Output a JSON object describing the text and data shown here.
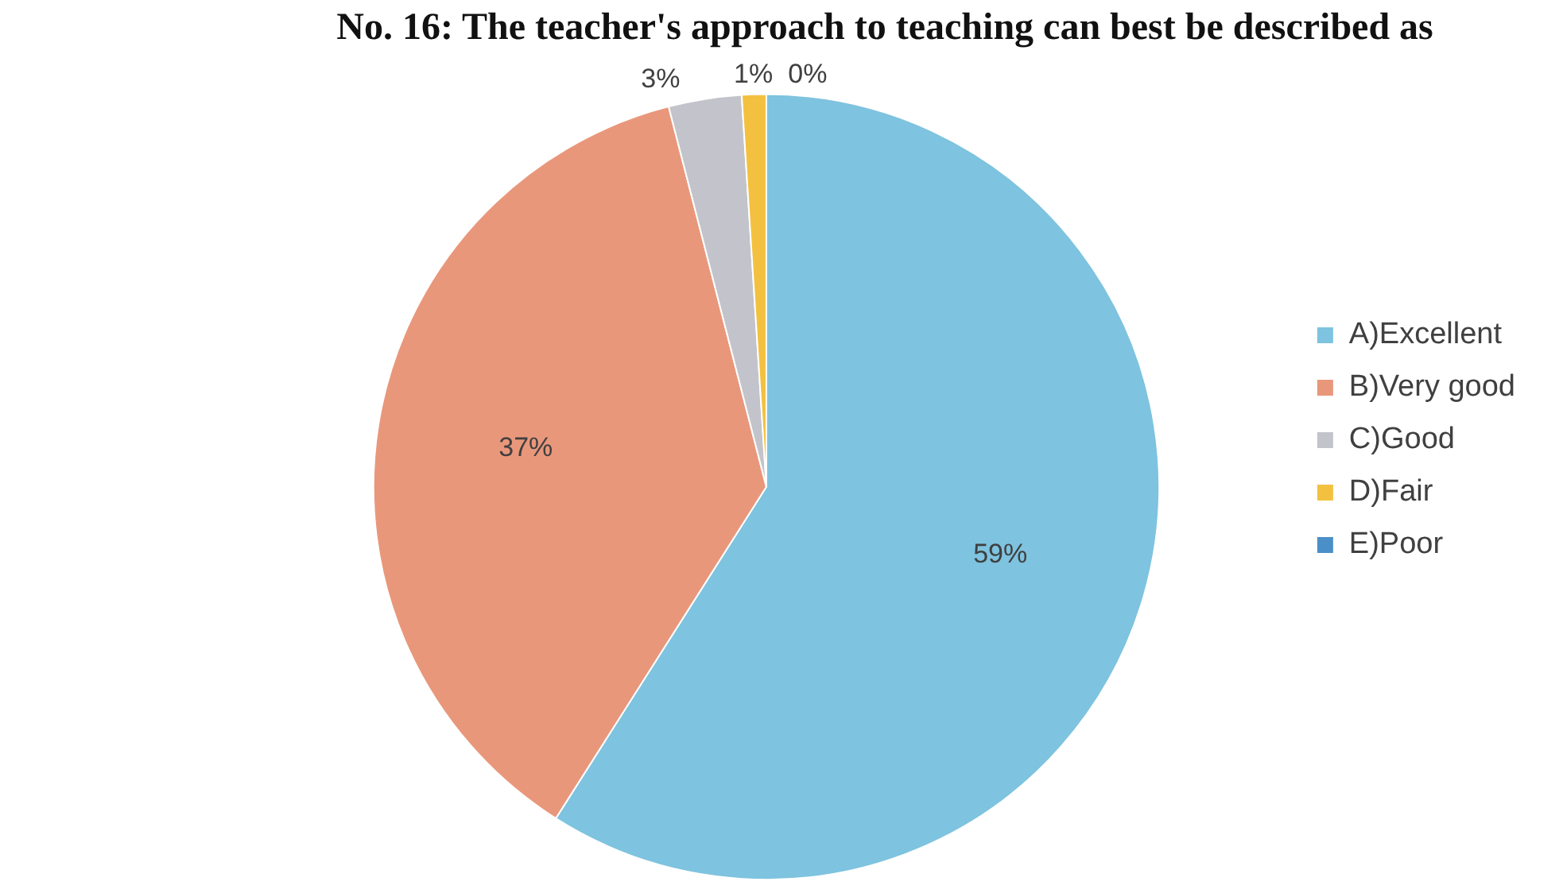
{
  "chart_data": {
    "type": "pie",
    "title": "No. 16: The teacher's approach to teaching can best be described as",
    "categories": [
      "A)Excellent",
      "B)Very good",
      "C)Good",
      "D)Fair",
      "E)Poor"
    ],
    "values": [
      59,
      37,
      3,
      1,
      0
    ],
    "colors": [
      "#7ec3df",
      "#e9977b",
      "#c3c3cb",
      "#f3c13f",
      "#4b8fc9"
    ],
    "value_labels": [
      "59%",
      "37%",
      "3%",
      "1%",
      "0%"
    ],
    "legend": "right"
  }
}
